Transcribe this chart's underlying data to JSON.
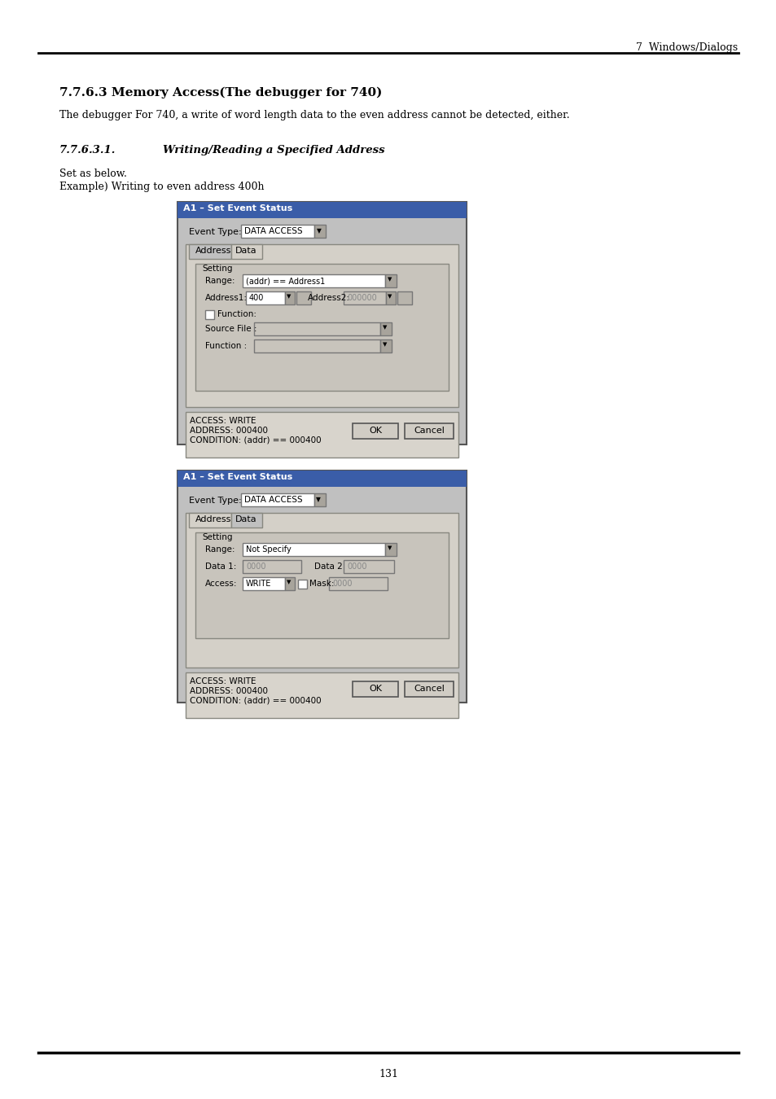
{
  "page_header_right": "7  Windows/Dialogs",
  "section_title": "7.7.6.3 Memory Access(The debugger for 740)",
  "section_body": "The debugger For 740, a write of word length data to the even address cannot be detected, either.",
  "subsection_num": "7.7.6.3.1.",
  "subsection_title": "Writing/Reading a Specified Address",
  "sub_body1": "Set as below.",
  "sub_body2": "Example) Writing to even address 400h",
  "dialog1_title": "A1 – Set Event Status",
  "event_type_label": "Event Type:",
  "event_type_value": "DATA ACCESS",
  "tab_address": "Address",
  "tab_data": "Data",
  "setting_label": "Setting",
  "range_label": "Range:",
  "range_value1": "(addr) == Address1",
  "address1_label": "Address1:",
  "address1_value": "400",
  "address2_label": "Address2:",
  "address2_value": "000000",
  "function_label": "Function:",
  "source_file_label": "Source File :",
  "function2_label": "Function :",
  "info_text1": "ACCESS: WRITE\nADDRESS: 000400\nCONDITION: (addr) == 000400",
  "ok_btn": "OK",
  "cancel_btn": "Cancel",
  "dialog2_title": "A1 – Set Event Status",
  "range2_value": "Not Specify",
  "data1_label": "Data 1:",
  "data1_value": "0000",
  "data2_label": "Data 2",
  "data2_value": "0000",
  "access_label": "Access:",
  "access_value": "WRITE",
  "mask_label": "Mask:",
  "mask_value": "0000",
  "info_text2": "ACCESS: WRITE\nADDRESS: 000400\nCONDITION: (addr) == 000400",
  "page_number": "131",
  "bg_color": "#ffffff",
  "dialog_bg": "#c0c0c0",
  "title_bar_color": "#3a5da8",
  "inner_panel_color": "#d4d0c8",
  "groupbox_color": "#c8c4bc",
  "info_bg": "#d8d4cc",
  "input_white": "#ffffff",
  "input_gray": "#c8c4bc",
  "btn_color": "#d0ccc4"
}
